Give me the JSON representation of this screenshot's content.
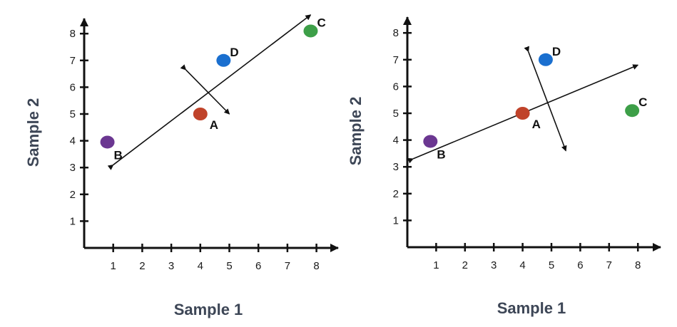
{
  "chart_data": [
    {
      "type": "scatter",
      "xlabel": "Sample 1",
      "ylabel": "Sample 2",
      "xticks": [
        "1",
        "2",
        "3",
        "4",
        "5",
        "6",
        "7",
        "8"
      ],
      "yticks": [
        "1",
        "2",
        "3",
        "4",
        "5",
        "6",
        "7",
        "8"
      ],
      "xlim": [
        0,
        8.6
      ],
      "ylim": [
        0,
        8.6
      ],
      "points": [
        {
          "label": "A",
          "x": 4.0,
          "y": 5.0,
          "color": "#c0432a"
        },
        {
          "label": "B",
          "x": 0.8,
          "y": 3.95,
          "color": "#6b3791"
        },
        {
          "label": "C",
          "x": 7.8,
          "y": 8.1,
          "color": "#3d9f48"
        },
        {
          "label": "D",
          "x": 4.8,
          "y": 7.0,
          "color": "#1a6fcf"
        }
      ],
      "arrows": [
        {
          "from": [
            1.0,
            3.1
          ],
          "to": [
            7.8,
            8.7
          ]
        },
        {
          "from": [
            3.5,
            6.65
          ],
          "to": [
            5.0,
            5.0
          ]
        }
      ]
    },
    {
      "type": "scatter",
      "xlabel": "Sample 1",
      "ylabel": "Sample 2",
      "xticks": [
        "1",
        "2",
        "3",
        "4",
        "5",
        "6",
        "7",
        "8"
      ],
      "yticks": [
        "1",
        "2",
        "3",
        "4",
        "5",
        "6",
        "7",
        "8"
      ],
      "xlim": [
        0,
        8.6
      ],
      "ylim": [
        0,
        8.6
      ],
      "points": [
        {
          "label": "A",
          "x": 4.0,
          "y": 5.0,
          "color": "#c0432a"
        },
        {
          "label": "B",
          "x": 0.8,
          "y": 3.95,
          "color": "#6b3791"
        },
        {
          "label": "C",
          "x": 7.8,
          "y": 5.1,
          "color": "#3d9f48"
        },
        {
          "label": "D",
          "x": 4.8,
          "y": 7.0,
          "color": "#1a6fcf"
        }
      ],
      "arrows": [
        {
          "from": [
            0.2,
            3.3
          ],
          "to": [
            8.0,
            6.8
          ]
        },
        {
          "from": [
            4.2,
            7.3
          ],
          "to": [
            5.5,
            3.6
          ]
        }
      ]
    }
  ]
}
